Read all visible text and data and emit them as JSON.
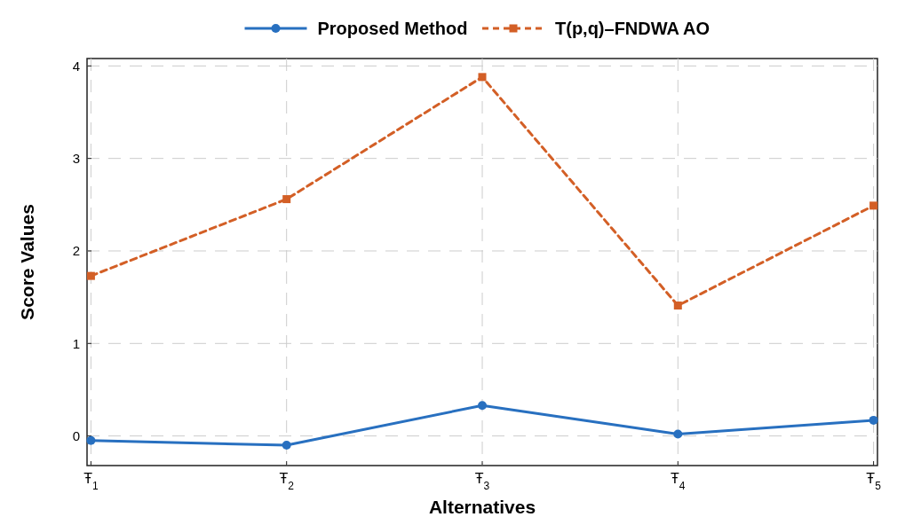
{
  "chart_data": {
    "type": "line",
    "xlabel": "Alternatives",
    "ylabel": "Score Values",
    "categories": [
      "Ŧ$_{1}$",
      "Ŧ$_{2}$",
      "Ŧ$_{3}$",
      "Ŧ$_{4}$",
      "Ŧ$_{5}$"
    ],
    "series": [
      {
        "name": "Proposed Method",
        "color": "#2870c0",
        "values": [
          -0.05,
          -0.1,
          0.33,
          0.02,
          0.17
        ],
        "marker": "circle",
        "line_style": "solid"
      },
      {
        "name": "T(p,q)–FNDWA AO",
        "color": "#d35f26",
        "values": [
          1.73,
          2.56,
          3.88,
          1.41,
          2.49
        ],
        "marker": "square",
        "line_style": "dashed"
      }
    ],
    "ylim": [
      -0.32,
      4.08
    ],
    "yticks": [
      0,
      1,
      2,
      3,
      4
    ],
    "grid": true,
    "legend": "top"
  }
}
